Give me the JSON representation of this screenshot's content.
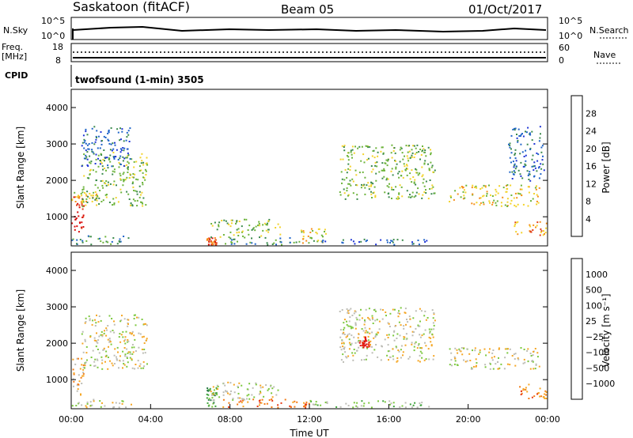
{
  "header": {
    "site": "Saskatoon (fitACF)",
    "beam": "Beam 05",
    "date": "01/Oct/2017"
  },
  "noise_panel": {
    "left_label": "N.Sky",
    "left_top_tick": "10^5",
    "left_bottom_tick": "10^0",
    "right_label": "N.Search",
    "right_top_tick": "10^5",
    "right_bottom_tick": "10^0"
  },
  "freq_panel": {
    "left_label_line1": "Freq.",
    "left_label_line2": "[MHz]",
    "left_top_tick": "18",
    "left_bottom_tick": "8",
    "right_label": "Nave",
    "right_top_tick": "60",
    "right_bottom_tick": "0"
  },
  "cpid": {
    "label": "CPID",
    "text": "twofsound (1-min) 3505"
  },
  "chart_data": [
    {
      "type": "heatmap",
      "name": "Power",
      "ylabel": "Slant Range [km]",
      "xlabel": "",
      "xlim": [
        "00:00",
        "24:00"
      ],
      "ylim": [
        200,
        4500
      ],
      "y_ticks": [
        "1000",
        "2000",
        "3000",
        "4000"
      ],
      "colorbar_label": "Power [dB]",
      "colorbar_ticks": [
        "4",
        "8",
        "12",
        "16",
        "20",
        "24",
        "28"
      ],
      "colorbar_colors": [
        "#1f35d6",
        "#1e63c8",
        "#3b8a4c",
        "#6cb33a",
        "#f3d32a",
        "#f58f1a",
        "#e03a14",
        "#d80a0a"
      ],
      "regions": [
        {
          "t": [
            0.0,
            0.6
          ],
          "range": [
            500,
            1700
          ],
          "level": 7
        },
        {
          "t": [
            0.0,
            1.5
          ],
          "range": [
            1400,
            1700
          ],
          "level": 4
        },
        {
          "t": [
            0.5,
            3.8
          ],
          "range": [
            1300,
            2800
          ],
          "level": 3
        },
        {
          "t": [
            0.5,
            3.0
          ],
          "range": [
            2400,
            3500
          ],
          "level": 1
        },
        {
          "t": [
            0.0,
            3.0
          ],
          "range": [
            250,
            500
          ],
          "level": 2
        },
        {
          "t": [
            6.8,
            7.3
          ],
          "range": [
            250,
            450
          ],
          "level": 6
        },
        {
          "t": [
            7.0,
            10.5
          ],
          "range": [
            450,
            950
          ],
          "level": 3
        },
        {
          "t": [
            7.5,
            11.5
          ],
          "range": [
            250,
            450
          ],
          "level": 2
        },
        {
          "t": [
            11.5,
            12.8
          ],
          "range": [
            300,
            700
          ],
          "level": 4
        },
        {
          "t": [
            13.5,
            18.3
          ],
          "range": [
            1500,
            3000
          ],
          "level": 3
        },
        {
          "t": [
            12.0,
            18.0
          ],
          "range": [
            250,
            400
          ],
          "level": 1
        },
        {
          "t": [
            19.0,
            23.6
          ],
          "range": [
            1300,
            1900
          ],
          "level": 4
        },
        {
          "t": [
            22.3,
            24.0
          ],
          "range": [
            500,
            900
          ],
          "level": 5
        },
        {
          "t": [
            22.0,
            23.8
          ],
          "range": [
            2000,
            3500
          ],
          "level": 1
        }
      ]
    },
    {
      "type": "heatmap",
      "name": "Velocity",
      "ylabel": "Slant Range [km]",
      "xlabel": "Time UT",
      "xlim": [
        "00:00",
        "24:00"
      ],
      "ylim": [
        200,
        4500
      ],
      "x_ticks": [
        "00:00",
        "04:00",
        "08:00",
        "12:00",
        "16:00",
        "20:00",
        "00:00"
      ],
      "y_ticks": [
        "1000",
        "2000",
        "3000",
        "4000"
      ],
      "colorbar_label": "Velocity [m s⁻¹]",
      "colorbar_ticks": [
        "1000",
        "500",
        "100",
        "25",
        "−25",
        "−100",
        "−500",
        "−1000"
      ],
      "colorbar_colors": [
        "#1f35d6",
        "#2f7a4a",
        "#3da23a",
        "#7cc83e",
        "#bdbdb6",
        "#f5a623",
        "#f37b14",
        "#e83a14",
        "#e20a0a"
      ],
      "regions": [
        {
          "t": [
            0.0,
            0.6
          ],
          "range": [
            600,
            1600
          ],
          "level": 5
        },
        {
          "t": [
            0.5,
            3.8
          ],
          "range": [
            1300,
            2800
          ],
          "level": 4
        },
        {
          "t": [
            0.0,
            3.0
          ],
          "range": [
            250,
            500
          ],
          "level": 4
        },
        {
          "t": [
            6.8,
            7.3
          ],
          "range": [
            250,
            800
          ],
          "level": 2
        },
        {
          "t": [
            7.0,
            10.5
          ],
          "range": [
            450,
            950
          ],
          "level": 4
        },
        {
          "t": [
            7.5,
            12.0
          ],
          "range": [
            250,
            500
          ],
          "level": 6
        },
        {
          "t": [
            12.0,
            18.0
          ],
          "range": [
            250,
            450
          ],
          "level": 3
        },
        {
          "t": [
            13.5,
            18.3
          ],
          "range": [
            1500,
            3000
          ],
          "level": 4
        },
        {
          "t": [
            14.5,
            15.0
          ],
          "range": [
            1900,
            2200
          ],
          "level": 8
        },
        {
          "t": [
            19.0,
            23.6
          ],
          "range": [
            1300,
            1900
          ],
          "level": 4
        },
        {
          "t": [
            22.3,
            24.0
          ],
          "range": [
            500,
            900
          ],
          "level": 6
        }
      ]
    }
  ],
  "colors": {
    "axis": "#000000",
    "background": "#ffffff"
  }
}
